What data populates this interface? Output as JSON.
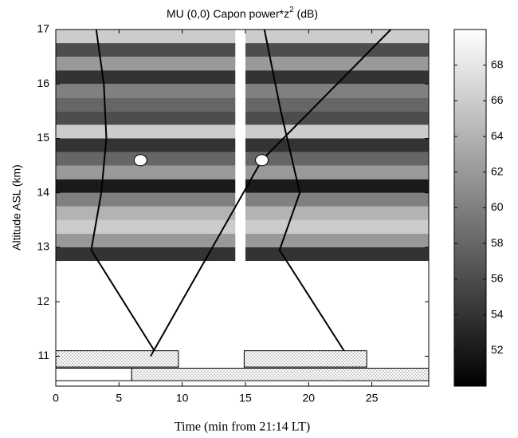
{
  "chart_data": {
    "type": "heatmap",
    "title": "MU (0,0) Capon power*z",
    "title_superscript": "2",
    "title_suffix": " (dB)",
    "x_label": "Time (min from 21:14 LT)",
    "y_label": "Altitude ASL (km)",
    "x_edges": [
      0,
      14.2,
      15,
      29.5
    ],
    "y_edges": [
      12.75,
      13,
      13.25,
      13.5,
      13.75,
      14,
      14.25,
      14.5,
      14.75,
      15,
      15.25,
      15.5,
      15.75,
      16,
      16.25,
      16.5,
      16.75,
      17
    ],
    "values": [
      [
        54,
        null,
        54
      ],
      [
        62,
        null,
        62
      ],
      [
        66,
        null,
        66
      ],
      [
        64,
        null,
        64
      ],
      [
        60,
        null,
        60
      ],
      [
        52,
        null,
        52
      ],
      [
        62,
        null,
        62
      ],
      [
        58,
        null,
        58
      ],
      [
        54,
        null,
        54
      ],
      [
        66,
        null,
        66
      ],
      [
        56,
        null,
        56
      ],
      [
        58,
        null,
        58
      ],
      [
        60,
        null,
        60
      ],
      [
        54,
        null,
        54
      ],
      [
        62,
        null,
        62
      ],
      [
        56,
        null,
        56
      ],
      [
        66,
        null,
        66
      ]
    ],
    "clim": [
      50,
      70
    ],
    "cticks": [
      52,
      54,
      56,
      58,
      60,
      62,
      64,
      66,
      68
    ],
    "xlim": [
      0,
      29.5
    ],
    "ylim": [
      10.45,
      17
    ],
    "xticks": [
      0,
      5,
      10,
      15,
      20,
      25
    ],
    "yticks": [
      11,
      12,
      13,
      14,
      15,
      16,
      17
    ],
    "lines": [
      {
        "x": [
          3.2,
          3.8,
          4.0,
          3.6,
          2.8,
          7.8
        ],
        "y": [
          17,
          16,
          15,
          14,
          12.95,
          11.1
        ]
      },
      {
        "x": [
          7.5,
          16.3,
          26.5
        ],
        "y": [
          11.0,
          14.6,
          17
        ]
      },
      {
        "x": [
          16.5,
          17.8,
          19.3,
          17.7,
          22.8
        ],
        "y": [
          17,
          15.5,
          14,
          12.95,
          11.1
        ]
      }
    ],
    "markers": {
      "x": [
        6.7,
        16.3
      ],
      "y": [
        14.6,
        14.6
      ]
    },
    "boxes": [
      {
        "x0": 0,
        "x1": 9.7,
        "y0": 10.8,
        "y1": 11.1
      },
      {
        "x0": 14.9,
        "x1": 24.6,
        "y0": 10.8,
        "y1": 11.1
      },
      {
        "x0": 0,
        "x1": 6,
        "y0": 10.55,
        "y1": 10.78
      },
      {
        "x0": 6,
        "x1": 29.5,
        "y0": 10.55,
        "y1": 10.78
      }
    ]
  }
}
